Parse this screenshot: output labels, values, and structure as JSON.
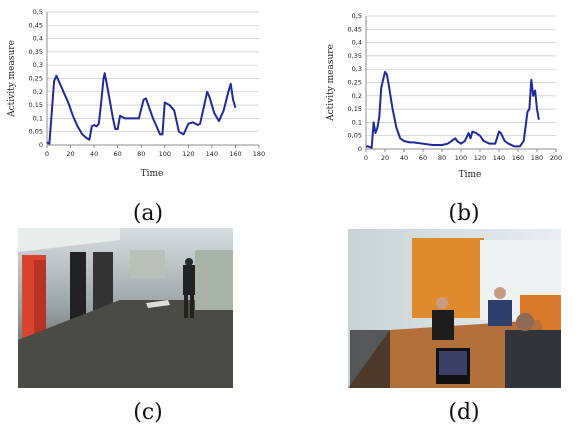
{
  "chart_data": [
    {
      "type": "line",
      "xlabel": "Time",
      "ylabel": "Activity measure",
      "grid": true,
      "xlim": [
        0,
        180
      ],
      "xticks": [
        0,
        20,
        40,
        60,
        80,
        100,
        120,
        140,
        160,
        180
      ],
      "ylim": [
        0,
        0.5
      ],
      "yticks": [
        0,
        {
          "value": 0.05,
          "label": "0,05"
        },
        {
          "value": 0.1,
          "label": "0,1"
        },
        {
          "value": 0.15,
          "label": "0,15"
        },
        {
          "value": 0.2,
          "label": "0,2"
        },
        {
          "value": 0.25,
          "label": "0,25"
        },
        {
          "value": 0.3,
          "label": "0,3"
        },
        {
          "value": 0.35,
          "label": "0,35"
        },
        {
          "value": 0.4,
          "label": "0,4"
        },
        {
          "value": 0.45,
          "label": "0,45"
        },
        {
          "value": 0.5,
          "label": "0,5"
        }
      ],
      "color": "#1f2a9c",
      "x": [
        0,
        2,
        4,
        6,
        8,
        10,
        14,
        18,
        22,
        26,
        30,
        34,
        36,
        38,
        40,
        42,
        44,
        46,
        48,
        49,
        52,
        56,
        58,
        60,
        62,
        66,
        70,
        74,
        78,
        82,
        84,
        86,
        90,
        94,
        96,
        98,
        100,
        104,
        108,
        112,
        116,
        120,
        124,
        128,
        130,
        134,
        136,
        138,
        142,
        146,
        150,
        154,
        156,
        158,
        160
      ],
      "values": [
        0.01,
        0.005,
        0.12,
        0.24,
        0.26,
        0.24,
        0.2,
        0.16,
        0.11,
        0.07,
        0.04,
        0.025,
        0.02,
        0.07,
        0.075,
        0.07,
        0.08,
        0.16,
        0.25,
        0.27,
        0.2,
        0.1,
        0.06,
        0.06,
        0.11,
        0.1,
        0.1,
        0.1,
        0.1,
        0.17,
        0.175,
        0.15,
        0.1,
        0.06,
        0.04,
        0.04,
        0.16,
        0.15,
        0.13,
        0.05,
        0.04,
        0.08,
        0.085,
        0.075,
        0.08,
        0.16,
        0.2,
        0.18,
        0.12,
        0.09,
        0.13,
        0.2,
        0.23,
        0.17,
        0.14
      ]
    },
    {
      "type": "line",
      "xlabel": "Time",
      "ylabel": "Activity measure",
      "grid": true,
      "xlim": [
        0,
        200
      ],
      "xticks": [
        0,
        20,
        40,
        60,
        80,
        100,
        120,
        140,
        160,
        180,
        200
      ],
      "ylim": [
        0,
        0.5
      ],
      "yticks": [
        0,
        {
          "value": 0.05,
          "label": "0,05"
        },
        {
          "value": 0.1,
          "label": "0,1"
        },
        {
          "value": 0.15,
          "label": "0,15"
        },
        {
          "value": 0.2,
          "label": "0,2"
        },
        {
          "value": 0.25,
          "label": "0,25"
        },
        {
          "value": 0.3,
          "label": "0,3"
        },
        {
          "value": 0.35,
          "label": "0,35"
        },
        {
          "value": 0.4,
          "label": "0,4"
        },
        {
          "value": 0.45,
          "label": "0,45"
        },
        {
          "value": 0.5,
          "label": "0,5"
        }
      ],
      "color": "#1f2a9c",
      "x": [
        0,
        2,
        6,
        8,
        10,
        12,
        14,
        16,
        18,
        20,
        22,
        24,
        28,
        32,
        36,
        40,
        46,
        50,
        60,
        70,
        80,
        86,
        90,
        94,
        96,
        100,
        104,
        108,
        110,
        112,
        116,
        120,
        124,
        130,
        136,
        140,
        142,
        146,
        150,
        156,
        162,
        166,
        170,
        172,
        174,
        176,
        178,
        180,
        182
      ],
      "values": [
        0.01,
        0.01,
        0.005,
        0.1,
        0.06,
        0.08,
        0.12,
        0.23,
        0.26,
        0.29,
        0.28,
        0.24,
        0.15,
        0.08,
        0.04,
        0.03,
        0.025,
        0.025,
        0.02,
        0.015,
        0.015,
        0.02,
        0.03,
        0.04,
        0.03,
        0.02,
        0.03,
        0.06,
        0.04,
        0.065,
        0.06,
        0.05,
        0.03,
        0.02,
        0.02,
        0.065,
        0.06,
        0.03,
        0.02,
        0.01,
        0.01,
        0.03,
        0.14,
        0.15,
        0.26,
        0.2,
        0.22,
        0.15,
        0.11
      ]
    }
  ],
  "captions": [
    "(a)",
    "(b)",
    "(c)",
    "(d)"
  ]
}
